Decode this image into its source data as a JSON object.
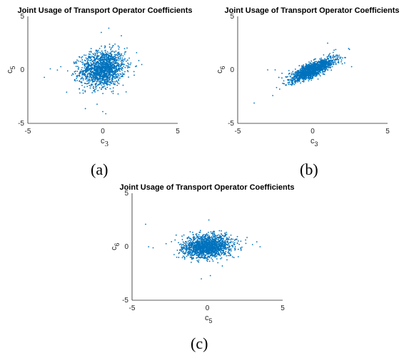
{
  "captions": [
    "(a)",
    "(b)",
    "(c)"
  ],
  "colors": {
    "marker": "#0072BD",
    "axis": "#262626"
  },
  "chart_data": [
    {
      "type": "scatter",
      "title": "Joint Usage of Transport Operator Coefficients",
      "xlabel": {
        "base": "c",
        "sub": "3"
      },
      "ylabel": {
        "base": "c",
        "sub": "5"
      },
      "xlim": [
        -5,
        5
      ],
      "ylim": [
        -5,
        5
      ],
      "xticks": [
        -5,
        0,
        5
      ],
      "yticks": [
        -5,
        0,
        5
      ],
      "grid": false,
      "distribution": {
        "n": 1500,
        "mean_x": 0.0,
        "mean_y": 0.1,
        "sd_x": 0.75,
        "sd_y": 0.85,
        "correlation": 0.15
      },
      "outliers": [
        [
          -3.9,
          -0.7
        ],
        [
          -3.5,
          0.1
        ],
        [
          -2.8,
          0.3
        ],
        [
          0.4,
          3.9
        ],
        [
          0.2,
          -4.1
        ],
        [
          2.6,
          0.5
        ],
        [
          -0.1,
          3.5
        ],
        [
          0.0,
          -3.9
        ]
      ]
    },
    {
      "type": "scatter",
      "title": "Joint Usage of Transport Operator Coefficients",
      "xlabel": {
        "base": "c",
        "sub": "3"
      },
      "ylabel": {
        "base": "c",
        "sub": "6"
      },
      "xlim": [
        -5,
        5
      ],
      "ylim": [
        -5,
        5
      ],
      "xticks": [
        -5,
        0,
        5
      ],
      "yticks": [
        -5,
        0,
        5
      ],
      "grid": false,
      "distribution": {
        "n": 1500,
        "mean_x": 0.0,
        "mean_y": 0.0,
        "sd_x": 0.75,
        "sd_y": 0.55,
        "correlation": 0.8
      },
      "outliers": [
        [
          -3.9,
          -3.1
        ],
        [
          -3.0,
          0.0
        ],
        [
          -2.5,
          0.0
        ],
        [
          -2.2,
          -1.8
        ],
        [
          -1.9,
          -1.3
        ],
        [
          2.6,
          0.3
        ],
        [
          2.4,
          2.0
        ],
        [
          1.0,
          2.5
        ]
      ]
    },
    {
      "type": "scatter",
      "title": "Joint Usage of Transport Operator Coefficients",
      "xlabel": {
        "base": "c",
        "sub": "5"
      },
      "ylabel": {
        "base": "c",
        "sub": "6"
      },
      "xlim": [
        -5,
        5
      ],
      "ylim": [
        -5,
        5
      ],
      "xticks": [
        -5,
        0,
        5
      ],
      "yticks": [
        -5,
        0,
        5
      ],
      "grid": false,
      "distribution": {
        "n": 1500,
        "mean_x": 0.0,
        "mean_y": 0.0,
        "sd_x": 0.8,
        "sd_y": 0.55,
        "correlation": 0.15
      },
      "outliers": [
        [
          -4.1,
          2.1
        ],
        [
          -3.9,
          0.0
        ],
        [
          -3.6,
          -0.1
        ],
        [
          3.5,
          0.0
        ],
        [
          3.0,
          0.2
        ],
        [
          0.1,
          2.5
        ],
        [
          -0.4,
          -3.0
        ],
        [
          0.2,
          -2.7
        ]
      ]
    }
  ]
}
